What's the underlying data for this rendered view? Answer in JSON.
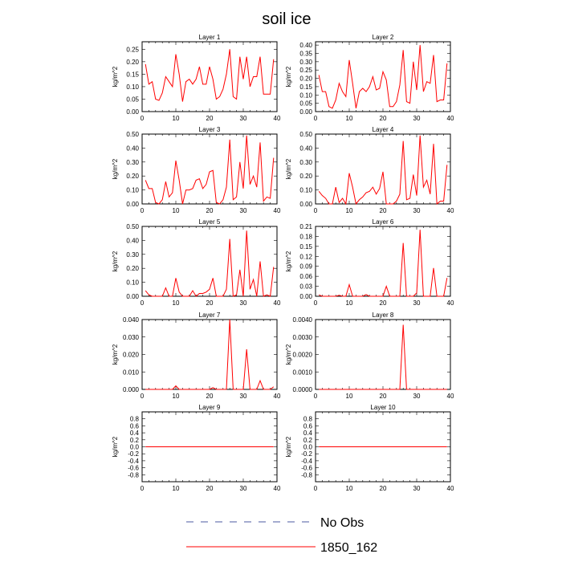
{
  "title": "soil ice",
  "legend": {
    "entries": [
      {
        "label": "No Obs",
        "color": "#4b5aa0",
        "dash": true
      },
      {
        "label": "1850_162",
        "color": "#ff0000",
        "dash": false
      }
    ]
  },
  "chart_data": [
    {
      "type": "line",
      "title": "Layer 1",
      "ylabel": "kg/m^2",
      "xlim": [
        0,
        40
      ],
      "xticks": [
        0,
        10,
        20,
        30,
        40
      ],
      "ylim": [
        0,
        0.28
      ],
      "yticks": [
        "0.00",
        "0.05",
        "0.10",
        "0.15",
        "0.20",
        "0.25"
      ],
      "x": [
        1,
        2,
        3,
        4,
        5,
        6,
        7,
        8,
        9,
        10,
        11,
        12,
        13,
        14,
        15,
        16,
        17,
        18,
        19,
        20,
        21,
        22,
        23,
        24,
        25,
        26,
        27,
        28,
        29,
        30,
        31,
        32,
        33,
        34,
        35,
        36,
        37,
        38,
        39
      ],
      "series": [
        {
          "name": "1850_162",
          "color": "#ff0000",
          "values": [
            0.19,
            0.11,
            0.12,
            0.05,
            0.045,
            0.075,
            0.14,
            0.12,
            0.1,
            0.23,
            0.15,
            0.04,
            0.12,
            0.13,
            0.11,
            0.13,
            0.18,
            0.11,
            0.11,
            0.18,
            0.13,
            0.05,
            0.06,
            0.09,
            0.15,
            0.25,
            0.06,
            0.05,
            0.22,
            0.13,
            0.22,
            0.1,
            0.14,
            0.14,
            0.22,
            0.07,
            0.07,
            0.07,
            0.21
          ]
        }
      ]
    },
    {
      "type": "line",
      "title": "Layer 2",
      "ylabel": "kg/m^2",
      "xlim": [
        0,
        40
      ],
      "xticks": [
        0,
        10,
        20,
        30,
        40
      ],
      "ylim": [
        0,
        0.42
      ],
      "yticks": [
        "0.00",
        "0.05",
        "0.10",
        "0.15",
        "0.20",
        "0.25",
        "0.30",
        "0.35",
        "0.40"
      ],
      "x": [
        1,
        2,
        3,
        4,
        5,
        6,
        7,
        8,
        9,
        10,
        11,
        12,
        13,
        14,
        15,
        16,
        17,
        18,
        19,
        20,
        21,
        22,
        23,
        24,
        25,
        26,
        27,
        28,
        29,
        30,
        31,
        32,
        33,
        34,
        35,
        36,
        37,
        38,
        39
      ],
      "series": [
        {
          "name": "1850_162",
          "color": "#ff0000",
          "values": [
            0.22,
            0.12,
            0.12,
            0.03,
            0.02,
            0.07,
            0.17,
            0.12,
            0.09,
            0.31,
            0.17,
            0.02,
            0.12,
            0.14,
            0.12,
            0.15,
            0.21,
            0.13,
            0.14,
            0.24,
            0.19,
            0.03,
            0.03,
            0.06,
            0.16,
            0.37,
            0.06,
            0.05,
            0.3,
            0.13,
            0.4,
            0.12,
            0.18,
            0.17,
            0.34,
            0.06,
            0.07,
            0.07,
            0.29
          ]
        }
      ]
    },
    {
      "type": "line",
      "title": "Layer 3",
      "ylabel": "kg/m^2",
      "xlim": [
        0,
        40
      ],
      "xticks": [
        0,
        10,
        20,
        30,
        40
      ],
      "ylim": [
        0,
        0.5
      ],
      "yticks": [
        "0.00",
        "0.10",
        "0.20",
        "0.30",
        "0.40",
        "0.50"
      ],
      "x": [
        1,
        2,
        3,
        4,
        5,
        6,
        7,
        8,
        9,
        10,
        11,
        12,
        13,
        14,
        15,
        16,
        17,
        18,
        19,
        20,
        21,
        22,
        23,
        24,
        25,
        26,
        27,
        28,
        29,
        30,
        31,
        32,
        33,
        34,
        35,
        36,
        37,
        38,
        39
      ],
      "series": [
        {
          "name": "1850_162",
          "color": "#ff0000",
          "values": [
            0.17,
            0.11,
            0.11,
            0.01,
            0.0,
            0.03,
            0.16,
            0.05,
            0.08,
            0.31,
            0.17,
            0.0,
            0.1,
            0.1,
            0.11,
            0.17,
            0.18,
            0.11,
            0.14,
            0.23,
            0.24,
            0.01,
            0.0,
            0.03,
            0.12,
            0.46,
            0.03,
            0.05,
            0.3,
            0.11,
            0.49,
            0.14,
            0.2,
            0.12,
            0.44,
            0.02,
            0.05,
            0.04,
            0.33
          ]
        }
      ]
    },
    {
      "type": "line",
      "title": "Layer 4",
      "ylabel": "kg/m^2",
      "xlim": [
        0,
        40
      ],
      "xticks": [
        0,
        10,
        20,
        30,
        40
      ],
      "ylim": [
        0,
        0.5
      ],
      "yticks": [
        "0.00",
        "0.10",
        "0.20",
        "0.30",
        "0.40",
        "0.50"
      ],
      "x": [
        1,
        2,
        3,
        4,
        5,
        6,
        7,
        8,
        9,
        10,
        11,
        12,
        13,
        14,
        15,
        16,
        17,
        18,
        19,
        20,
        21,
        22,
        23,
        24,
        25,
        26,
        27,
        28,
        29,
        30,
        31,
        32,
        33,
        34,
        35,
        36,
        37,
        38,
        39
      ],
      "series": [
        {
          "name": "1850_162",
          "color": "#ff0000",
          "values": [
            0.09,
            0.06,
            0.04,
            0.0,
            0.0,
            0.12,
            0.01,
            0.04,
            0.0,
            0.22,
            0.12,
            0.0,
            0.03,
            0.05,
            0.08,
            0.09,
            0.12,
            0.07,
            0.11,
            0.23,
            0.0,
            0.0,
            0.0,
            0.02,
            0.07,
            0.45,
            0.03,
            0.04,
            0.21,
            0.06,
            0.49,
            0.12,
            0.17,
            0.07,
            0.43,
            0.0,
            0.02,
            0.02,
            0.28
          ]
        }
      ]
    },
    {
      "type": "line",
      "title": "Layer 5",
      "ylabel": "kg/m^2",
      "xlim": [
        0,
        40
      ],
      "xticks": [
        0,
        10,
        20,
        30,
        40
      ],
      "ylim": [
        0,
        0.5
      ],
      "yticks": [
        "0.00",
        "0.10",
        "0.20",
        "0.30",
        "0.40",
        "0.50"
      ],
      "x": [
        1,
        2,
        3,
        4,
        5,
        6,
        7,
        8,
        9,
        10,
        11,
        12,
        13,
        14,
        15,
        16,
        17,
        18,
        19,
        20,
        21,
        22,
        23,
        24,
        25,
        26,
        27,
        28,
        29,
        30,
        31,
        32,
        33,
        34,
        35,
        36,
        37,
        38,
        39
      ],
      "series": [
        {
          "name": "1850_162",
          "color": "#ff0000",
          "values": [
            0.04,
            0.01,
            0.0,
            0.0,
            0.0,
            0.0,
            0.06,
            0.0,
            0.0,
            0.13,
            0.03,
            0.0,
            0.0,
            0.0,
            0.04,
            0.0,
            0.02,
            0.02,
            0.03,
            0.05,
            0.13,
            0.0,
            0.0,
            0.0,
            0.05,
            0.41,
            0.0,
            0.01,
            0.19,
            0.0,
            0.47,
            0.05,
            0.12,
            0.0,
            0.25,
            0.0,
            0.01,
            0.0,
            0.21
          ]
        }
      ]
    },
    {
      "type": "line",
      "title": "Layer 6",
      "ylabel": "kg/m^2",
      "xlim": [
        0,
        40
      ],
      "xticks": [
        0,
        10,
        20,
        30,
        40
      ],
      "ylim": [
        0,
        0.21
      ],
      "yticks": [
        "0.00",
        "0.03",
        "0.06",
        "0.09",
        "0.12",
        "0.15",
        "0.18",
        "0.21"
      ],
      "x": [
        1,
        2,
        3,
        4,
        5,
        6,
        7,
        8,
        9,
        10,
        11,
        12,
        13,
        14,
        15,
        16,
        17,
        18,
        19,
        20,
        21,
        22,
        23,
        24,
        25,
        26,
        27,
        28,
        29,
        30,
        31,
        32,
        33,
        34,
        35,
        36,
        37,
        38,
        39
      ],
      "series": [
        {
          "name": "1850_162",
          "color": "#ff0000",
          "values": [
            0.004,
            0.0,
            0.0,
            0.0,
            0.0,
            0.0,
            0.003,
            0.0,
            0.0,
            0.035,
            0.0,
            0.0,
            0.0,
            0.0,
            0.005,
            0.0,
            0.0,
            0.0,
            0.0,
            0.0,
            0.03,
            0.0,
            0.0,
            0.0,
            0.0,
            0.16,
            0.0,
            0.0,
            0.0,
            0.01,
            0.2,
            0.0,
            0.0,
            0.0,
            0.085,
            0.0,
            0.0,
            0.0,
            0.055
          ]
        }
      ]
    },
    {
      "type": "line",
      "title": "Layer 7",
      "ylabel": "kg/m^2",
      "xlim": [
        0,
        40
      ],
      "xticks": [
        0,
        10,
        20,
        30,
        40
      ],
      "ylim": [
        0,
        0.04
      ],
      "yticks": [
        "0.000",
        "0.010",
        "0.020",
        "0.030",
        "0.040"
      ],
      "x": [
        1,
        2,
        3,
        4,
        5,
        6,
        7,
        8,
        9,
        10,
        11,
        12,
        13,
        14,
        15,
        16,
        17,
        18,
        19,
        20,
        21,
        22,
        23,
        24,
        25,
        26,
        27,
        28,
        29,
        30,
        31,
        32,
        33,
        34,
        35,
        36,
        37,
        38,
        39
      ],
      "series": [
        {
          "name": "1850_162",
          "color": "#ff0000",
          "values": [
            0,
            0,
            0,
            0,
            0,
            0,
            0,
            0,
            0,
            0.002,
            0,
            0,
            0,
            0,
            0,
            0,
            0,
            0,
            0,
            0,
            0.001,
            0,
            0,
            0,
            0,
            0.04,
            0,
            0,
            0,
            0,
            0.023,
            0,
            0,
            0,
            0.005,
            0,
            0,
            0,
            0.0015
          ]
        }
      ]
    },
    {
      "type": "line",
      "title": "Layer 8",
      "ylabel": "kg/m^2",
      "xlim": [
        0,
        40
      ],
      "xticks": [
        0,
        10,
        20,
        30,
        40
      ],
      "ylim": [
        0,
        0.004
      ],
      "yticks": [
        "0.0000",
        "0.0010",
        "0.0020",
        "0.0030",
        "0.0040"
      ],
      "x": [
        1,
        2,
        3,
        4,
        5,
        6,
        7,
        8,
        9,
        10,
        11,
        12,
        13,
        14,
        15,
        16,
        17,
        18,
        19,
        20,
        21,
        22,
        23,
        24,
        25,
        26,
        27,
        28,
        29,
        30,
        31,
        32,
        33,
        34,
        35,
        36,
        37,
        38,
        39
      ],
      "series": [
        {
          "name": "1850_162",
          "color": "#ff0000",
          "values": [
            0,
            0,
            0,
            0,
            0,
            0,
            0,
            0,
            0,
            0,
            0,
            0,
            0,
            0,
            0,
            0,
            0,
            0,
            0,
            0,
            0,
            0,
            0,
            0,
            0,
            0.0037,
            0,
            0,
            0,
            0,
            0,
            0,
            0,
            0,
            0,
            0,
            0,
            0,
            0
          ]
        }
      ]
    },
    {
      "type": "line",
      "title": "Layer 9",
      "ylabel": "kg/m^2",
      "xlim": [
        0,
        40
      ],
      "xticks": [
        0,
        10,
        20,
        30,
        40
      ],
      "ylim": [
        -1,
        1
      ],
      "yticks": [
        "-0.8",
        "-0.4",
        "0.0",
        "0.4",
        "0.8"
      ],
      "ytickvals": [
        -0.8,
        -0.6,
        -0.4,
        -0.2,
        0,
        0.2,
        0.4,
        0.6,
        0.8
      ],
      "ylabels_shown": [
        "0.8",
        "0.6",
        "0.4",
        "0.2",
        "0.0",
        "-0.2",
        "-0.4",
        "-0.6",
        "-0.8"
      ],
      "x": [
        1,
        39
      ],
      "series": [
        {
          "name": "1850_162",
          "color": "#ff0000",
          "values": [
            0,
            0
          ]
        }
      ]
    },
    {
      "type": "line",
      "title": "Layer 10",
      "ylabel": "kg/m^2",
      "xlim": [
        0,
        40
      ],
      "xticks": [
        0,
        10,
        20,
        30,
        40
      ],
      "ylim": [
        -1,
        1
      ],
      "yticks": [
        "-0.8",
        "-0.4",
        "0.0",
        "0.4",
        "0.8"
      ],
      "ytickvals": [
        -0.8,
        -0.6,
        -0.4,
        -0.2,
        0,
        0.2,
        0.4,
        0.6,
        0.8
      ],
      "ylabels_shown": [
        "0.8",
        "0.6",
        "0.4",
        "0.2",
        "0.0",
        "-0.2",
        "-0.4",
        "-0.6",
        "-0.8"
      ],
      "x": [
        1,
        39
      ],
      "series": [
        {
          "name": "1850_162",
          "color": "#ff0000",
          "values": [
            0,
            0
          ]
        }
      ]
    }
  ]
}
